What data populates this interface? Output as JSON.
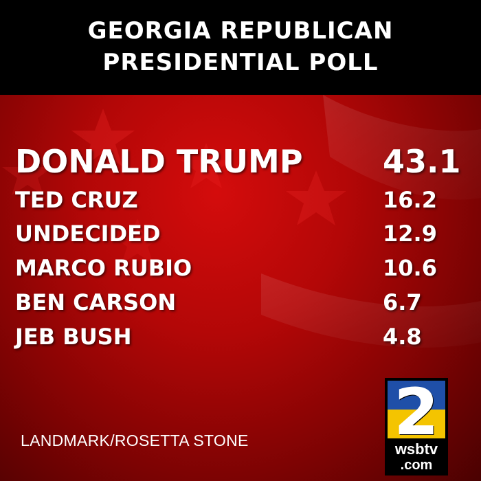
{
  "header": {
    "title_line1": "GEORGIA REPUBLICAN",
    "title_line2": "PRESIDENTIAL POLL"
  },
  "results": [
    {
      "name": "DONALD TRUMP",
      "value": "43.1"
    },
    {
      "name": "TED CRUZ",
      "value": "16.2"
    },
    {
      "name": "UNDECIDED",
      "value": "12.9"
    },
    {
      "name": "MARCO RUBIO",
      "value": "10.6"
    },
    {
      "name": "BEN CARSON",
      "value": "6.7"
    },
    {
      "name": "JEB BUSH",
      "value": "4.8"
    }
  ],
  "source": "LANDMARK/ROSETTA STONE",
  "logo": {
    "number": "2",
    "brand": "wsbtv",
    "domain": ".com"
  },
  "colors": {
    "header_bg": "#000000",
    "panel_red": "#b30707",
    "text": "#ffffff",
    "logo_yellow": "#f4c400",
    "logo_blue": "#1f4fa8"
  }
}
